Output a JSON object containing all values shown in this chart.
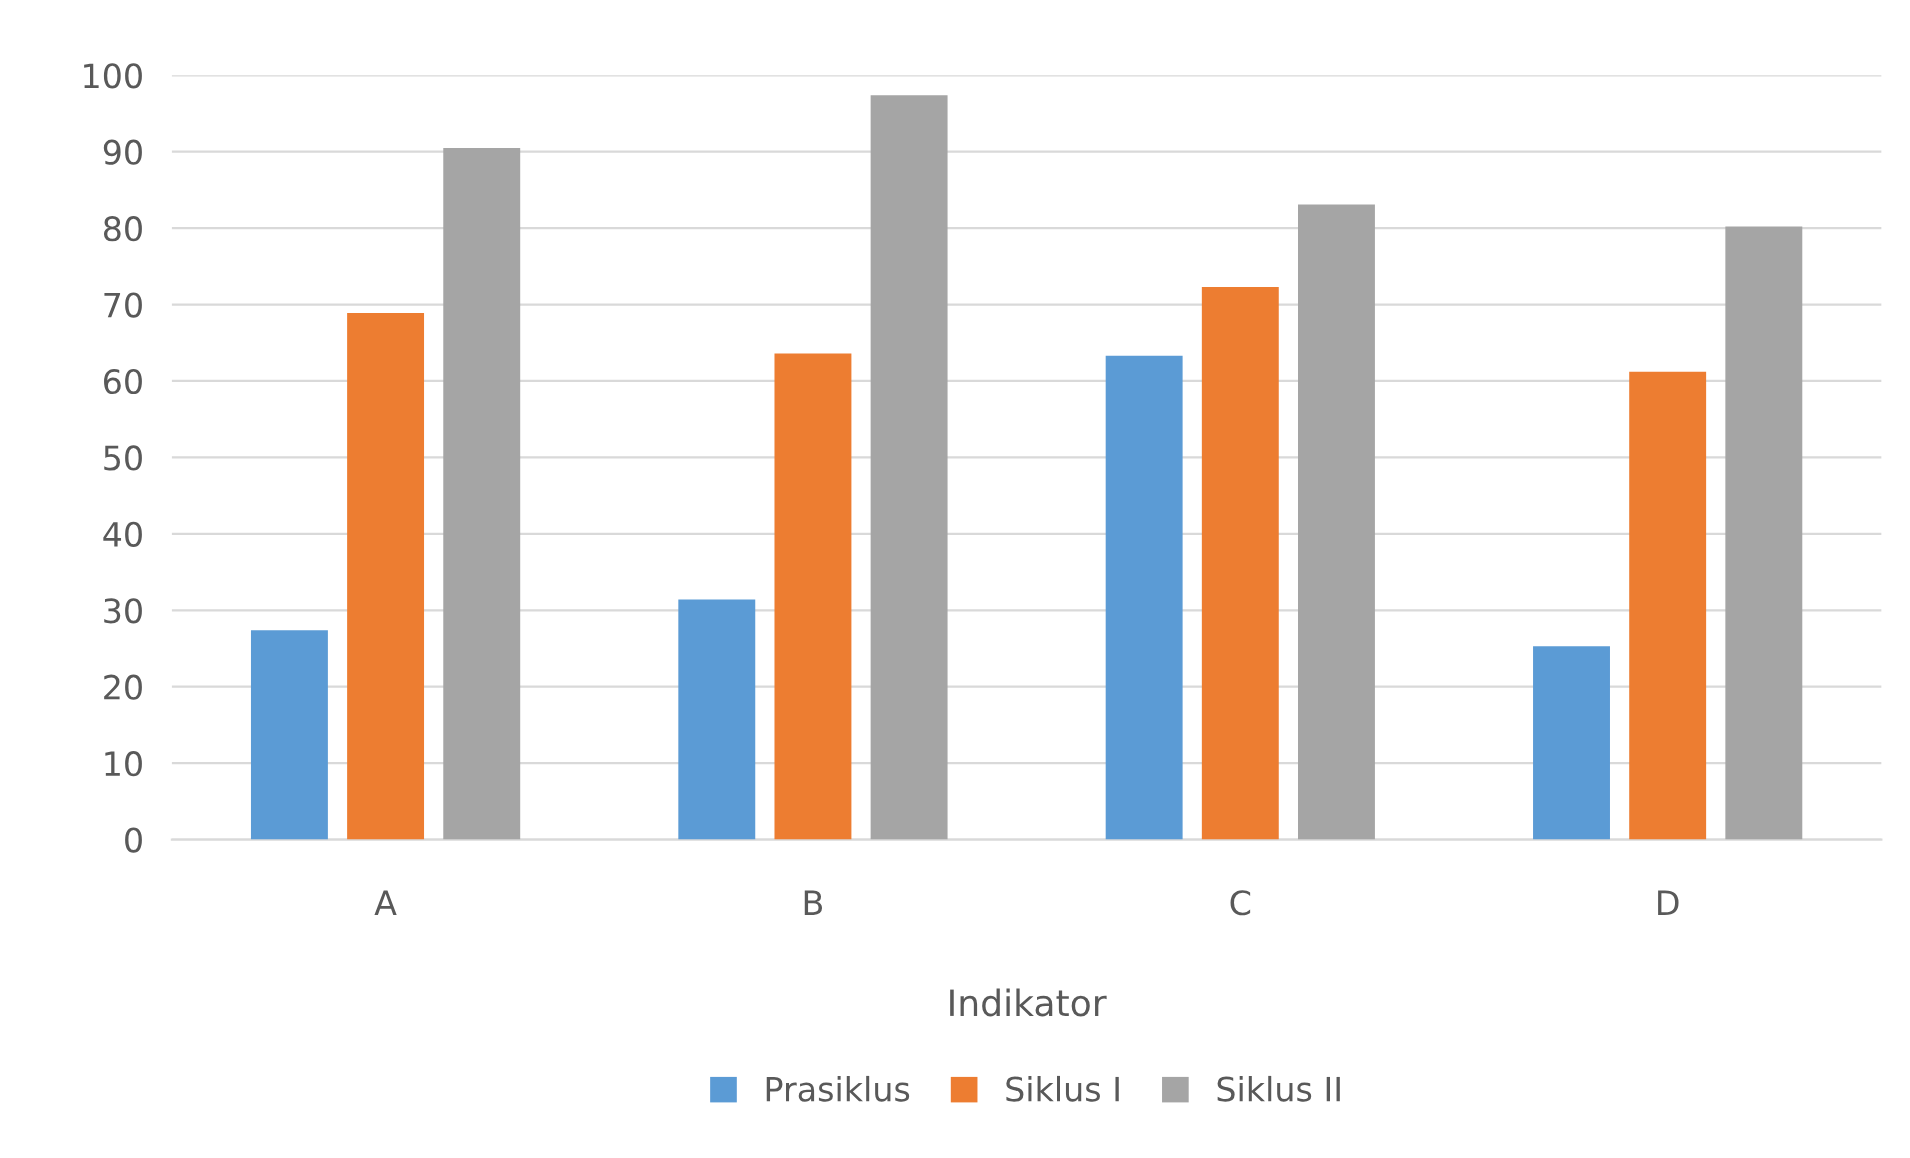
{
  "chart_data": {
    "type": "bar",
    "xlabel": "Indikator",
    "categories": [
      "A",
      "B",
      "C",
      "D"
    ],
    "series": [
      {
        "name": "Prasiklus",
        "color": "#5b9bd5",
        "values": [
          27.4,
          31.4,
          63.3,
          25.3
        ]
      },
      {
        "name": "Siklus I",
        "color": "#ed7d31",
        "values": [
          68.9,
          63.6,
          72.3,
          61.2
        ]
      },
      {
        "name": "Siklus II",
        "color": "#a5a5a5",
        "values": [
          90.5,
          97.4,
          83.1,
          80.2
        ]
      }
    ],
    "ylim": [
      0,
      100
    ],
    "yticks": [
      0,
      10,
      20,
      30,
      40,
      50,
      60,
      70,
      80,
      90,
      100
    ],
    "grid": "y",
    "legend": "bottom"
  }
}
